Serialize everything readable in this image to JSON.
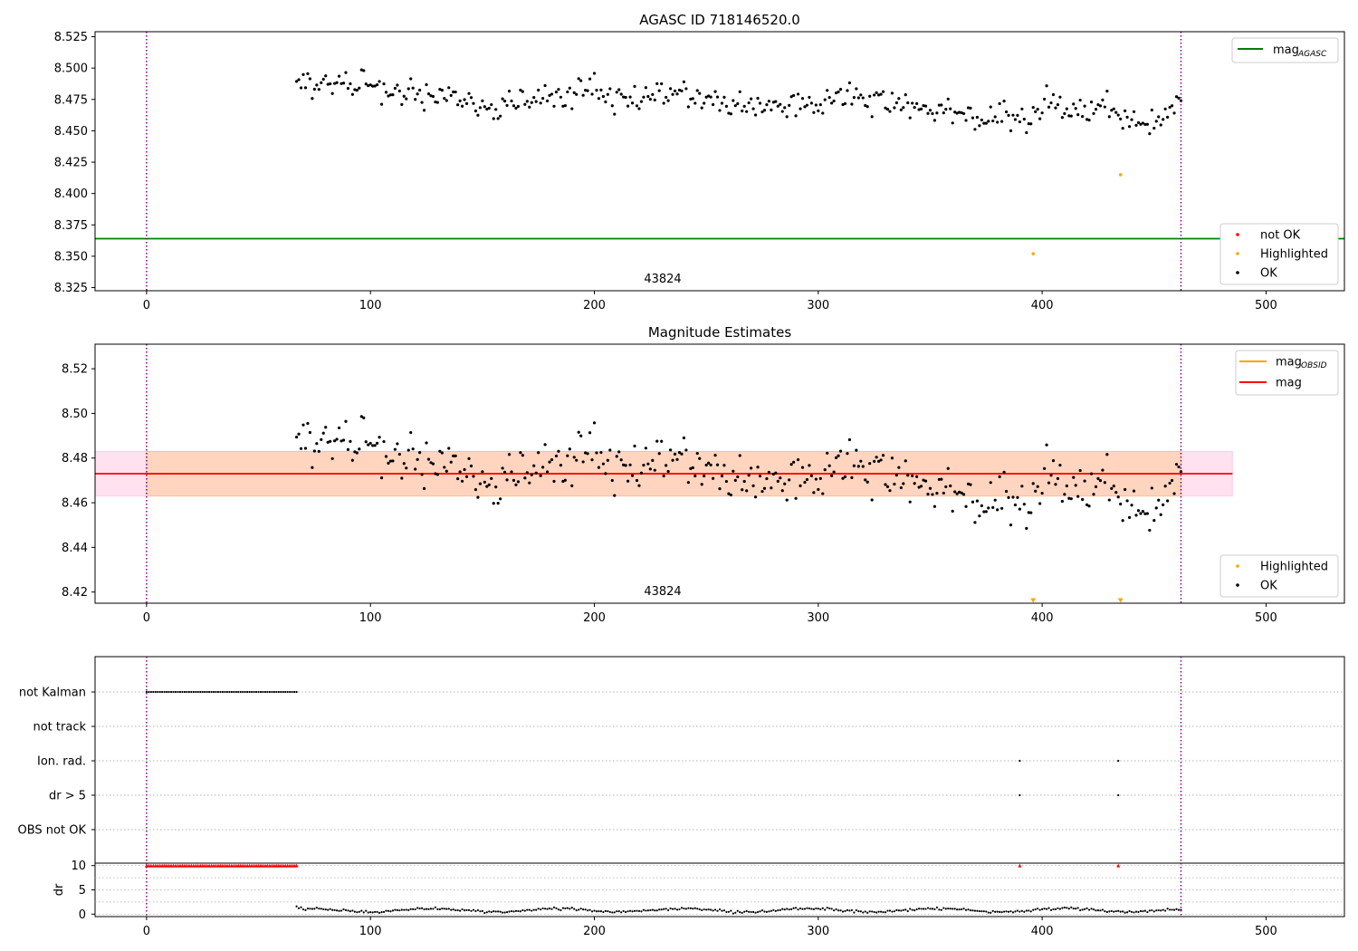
{
  "figure": {
    "panel1_title": "AGASC ID 718146520.0",
    "panel2_title": "Magnitude Estimates",
    "obsid_label": "43824"
  },
  "chart_data": [
    {
      "type": "scatter",
      "title": "AGASC ID 718146520.0",
      "xlim": [
        -23,
        535
      ],
      "ylim": [
        8.3225,
        8.529
      ],
      "xticks": [
        "0",
        "100",
        "200",
        "300",
        "400",
        "500"
      ],
      "yticks": [
        "8.325",
        "8.350",
        "8.375",
        "8.400",
        "8.425",
        "8.450",
        "8.475",
        "8.500",
        "8.525"
      ],
      "lines": [
        {
          "name": "mag_AGASC",
          "label_main": "mag",
          "label_sub": "AGASC",
          "y": 8.364,
          "x_range": [
            -23,
            535
          ],
          "color": "#008000"
        }
      ],
      "vlines": {
        "x": [
          0,
          462
        ],
        "color": "#800080",
        "style": "dotted"
      },
      "annotation": {
        "text": "43824",
        "x": 230,
        "y": 8.33
      },
      "legend_lines_position": "upper right",
      "legend_points_position": "lower right",
      "legend_points": [
        {
          "label": "not OK",
          "color": "#ff0000"
        },
        {
          "label": "Highlighted",
          "color": "#ffa500"
        },
        {
          "label": "OK",
          "color": "#000000"
        }
      ],
      "series": [
        {
          "name": "Highlighted",
          "color": "#ffa500",
          "points": [
            [
              396,
              8.352
            ],
            [
              435,
              8.415
            ]
          ]
        },
        {
          "name": "OK",
          "color": "#000000",
          "trend_knots": [
            [
              68,
              8.487
            ],
            [
              100,
              8.488
            ],
            [
              105,
              8.479
            ],
            [
              140,
              8.477
            ],
            [
              155,
              8.47
            ],
            [
              200,
              8.481
            ],
            [
              210,
              8.478
            ],
            [
              220,
              8.475
            ],
            [
              230,
              8.483
            ],
            [
              260,
              8.47
            ],
            [
              300,
              8.471
            ],
            [
              310,
              8.478
            ],
            [
              340,
              8.47
            ],
            [
              360,
              8.465
            ],
            [
              380,
              8.46
            ],
            [
              395,
              8.458
            ],
            [
              400,
              8.472
            ],
            [
              410,
              8.466
            ],
            [
              430,
              8.465
            ],
            [
              440,
              8.458
            ],
            [
              450,
              8.455
            ],
            [
              462,
              8.474
            ]
          ],
          "x_range": [
            67,
            462
          ],
          "scatter": 0.0075
        }
      ]
    },
    {
      "type": "scatter",
      "title": "Magnitude Estimates",
      "xlim": [
        -23,
        535
      ],
      "ylim": [
        8.415,
        8.531
      ],
      "xticks": [
        "0",
        "100",
        "200",
        "300",
        "400",
        "500"
      ],
      "yticks": [
        "8.42",
        "8.44",
        "8.46",
        "8.48",
        "8.50",
        "8.52"
      ],
      "bands": [
        {
          "ymin": 8.463,
          "ymax": 8.483,
          "x_range": [
            -23,
            485
          ],
          "color": "#ff69b4",
          "alpha": 0.2
        },
        {
          "ymin": 8.463,
          "ymax": 8.483,
          "x_range": [
            0,
            462
          ],
          "color": "#ffa500",
          "alpha": 0.2
        }
      ],
      "lines": [
        {
          "name": "mag_OBSID",
          "label_main": "mag",
          "label_sub": "OBSID",
          "y": 8.473,
          "x_range": [
            0,
            462
          ],
          "color": "#ffa500"
        },
        {
          "name": "mag",
          "label_main": "mag",
          "label_sub": "",
          "y": 8.473,
          "x_range": [
            -23,
            485
          ],
          "color": "#ff0000"
        }
      ],
      "vlines": {
        "x": [
          0,
          462
        ],
        "color": "#800080",
        "style": "dotted"
      },
      "annotation": {
        "text": "43824",
        "x": 230,
        "y": 8.418
      },
      "legend_lines_position": "upper right",
      "legend_points_position": "lower right",
      "legend_points": [
        {
          "label": "Highlighted",
          "color": "#ffa500"
        },
        {
          "label": "OK",
          "color": "#000000"
        }
      ],
      "series": [
        {
          "name": "Highlighted",
          "color": "#ffa500",
          "marker": "triangle-down",
          "points": [
            [
              396,
              8.416
            ],
            [
              435,
              8.416
            ]
          ]
        },
        {
          "name": "OK",
          "color": "#000000",
          "same_trend_as_panel": 1
        }
      ]
    },
    {
      "type": "scatter",
      "title": "",
      "xlim": [
        -23,
        535
      ],
      "categories": [
        "not Kalman",
        "not track",
        "Ion. rad.",
        "dr > 5",
        "OBS not OK"
      ],
      "flags": [
        {
          "category": "not Kalman",
          "x_range": [
            0,
            67
          ],
          "color": "#000000"
        },
        {
          "category": "Ion. rad.",
          "x": [
            390,
            434
          ],
          "color": "#000000"
        },
        {
          "category": "dr > 5",
          "x": [
            390,
            434
          ],
          "color": "#000000"
        }
      ],
      "vlines": {
        "x": [
          0,
          462
        ],
        "color": "#800080",
        "style": "dotted"
      }
    },
    {
      "type": "scatter",
      "title": "",
      "ylabel": "dr",
      "xlim": [
        -23,
        535
      ],
      "ylim": [
        -0.5,
        10.5
      ],
      "xticks": [
        "0",
        "100",
        "200",
        "300",
        "400",
        "500"
      ],
      "yticks": [
        "0",
        "5",
        "10"
      ],
      "series": [
        {
          "name": "dr",
          "color": "#000000",
          "x_range": [
            67,
            462
          ],
          "typical": 0.8,
          "spread": 0.5
        },
        {
          "name": "dr clipped",
          "color": "#ff0000",
          "marker": "triangle-up",
          "x_range": [
            0,
            67
          ],
          "value": 10,
          "extra_x": [
            390,
            434
          ]
        }
      ],
      "vlines": {
        "x": [
          0,
          462
        ],
        "color": "#800080",
        "style": "dotted"
      }
    }
  ]
}
